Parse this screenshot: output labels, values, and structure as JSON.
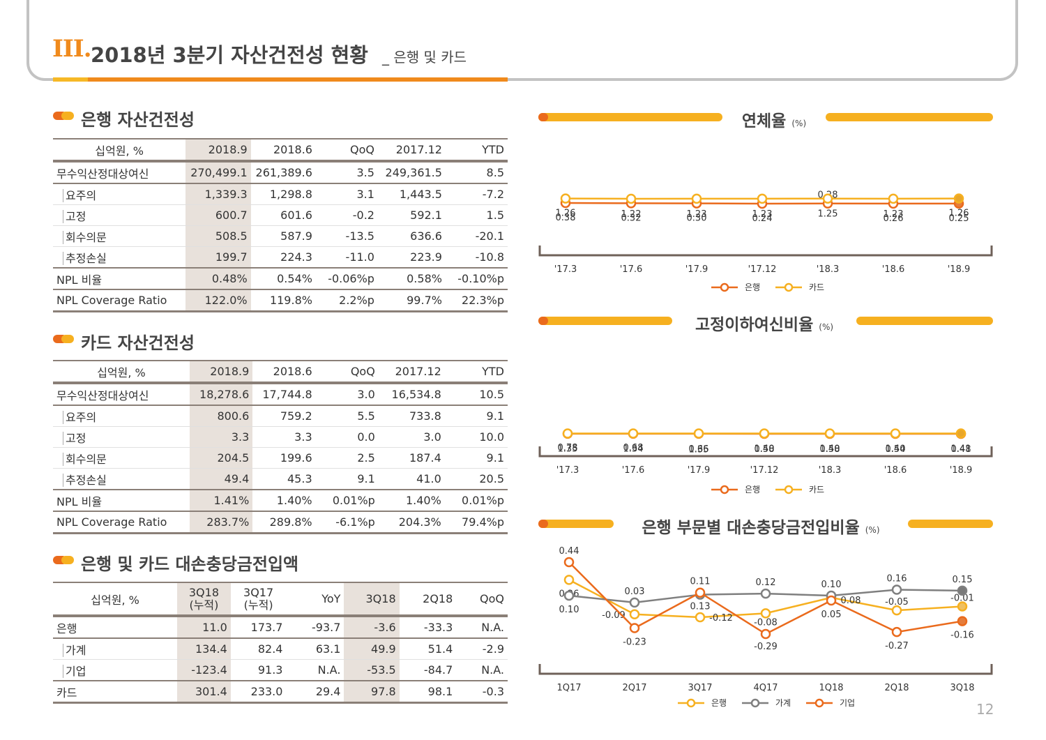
{
  "header": {
    "num": "III.",
    "title": "2018년 3분기 자산건전성 현황",
    "sub": "_ 은행 및 카드"
  },
  "page_no": "12",
  "colors": {
    "orange": "#ea6a1c",
    "yellow": "#f6b020",
    "grey": "#7f7f7f",
    "shade": "#e8e1db"
  },
  "bank_table": {
    "title": "은행 자산건전성",
    "headers": [
      "십억원, %",
      "2018.9",
      "2018.6",
      "QoQ",
      "2017.12",
      "YTD"
    ],
    "rows": [
      [
        "무수익산정대상여신",
        "270,499.1",
        "261,389.6",
        "3.5",
        "249,361.5",
        "8.5"
      ],
      [
        "요주의",
        "1,339.3",
        "1,298.8",
        "3.1",
        "1,443.5",
        "-7.2"
      ],
      [
        "고정",
        "600.7",
        "601.6",
        "-0.2",
        "592.1",
        "1.5"
      ],
      [
        "회수의문",
        "508.5",
        "587.9",
        "-13.5",
        "636.6",
        "-20.1"
      ],
      [
        "추정손실",
        "199.7",
        "224.3",
        "-11.0",
        "223.9",
        "-10.8"
      ],
      [
        "NPL 비율",
        "0.48%",
        "0.54%",
        "-0.06%p",
        "0.58%",
        "-0.10%p"
      ],
      [
        "NPL Coverage Ratio",
        "122.0%",
        "119.8%",
        "2.2%p",
        "99.7%",
        "22.3%p"
      ]
    ]
  },
  "card_table": {
    "title": "카드 자산건전성",
    "headers": [
      "십억원, %",
      "2018.9",
      "2018.6",
      "QoQ",
      "2017.12",
      "YTD"
    ],
    "rows": [
      [
        "무수익산정대상여신",
        "18,278.6",
        "17,744.8",
        "3.0",
        "16,534.8",
        "10.5"
      ],
      [
        "요주의",
        "800.6",
        "759.2",
        "5.5",
        "733.8",
        "9.1"
      ],
      [
        "고정",
        "3.3",
        "3.3",
        "0.0",
        "3.0",
        "10.0"
      ],
      [
        "회수의문",
        "204.5",
        "199.6",
        "2.5",
        "187.4",
        "9.1"
      ],
      [
        "추정손실",
        "49.4",
        "45.3",
        "9.1",
        "41.0",
        "20.5"
      ],
      [
        "NPL 비율",
        "1.41%",
        "1.40%",
        "0.01%p",
        "1.40%",
        "0.01%p"
      ],
      [
        "NPL Coverage Ratio",
        "283.7%",
        "289.8%",
        "-6.1%p",
        "204.3%",
        "79.4%p"
      ]
    ]
  },
  "prov_table": {
    "title": "은행 및 카드 대손충당금전입액",
    "headers": [
      "십억원, %",
      "3Q18",
      "(누적)",
      "3Q17",
      "(누적)",
      "YoY",
      "3Q18",
      "2Q18",
      "QoQ"
    ],
    "rows": [
      [
        "은행",
        "11.0",
        "173.7",
        "-93.7",
        "-3.6",
        "-33.3",
        "N.A."
      ],
      [
        "가계",
        "134.4",
        "82.4",
        "63.1",
        "49.9",
        "51.4",
        "-2.9"
      ],
      [
        "기업",
        "-123.4",
        "91.3",
        "N.A.",
        "-53.5",
        "-84.7",
        "N.A."
      ],
      [
        "카드",
        "301.4",
        "233.0",
        "29.4",
        "97.8",
        "98.1",
        "-0.3"
      ]
    ]
  },
  "chart_data": [
    {
      "type": "line",
      "title": "연체율",
      "unit": "(%)",
      "categories": [
        "'17.3",
        "'17.6",
        "'17.9",
        "'17.12",
        "'18.3",
        "'18.6",
        "'18.9"
      ],
      "series": [
        {
          "name": "은행",
          "values": [
            0.38,
            0.32,
            0.3,
            0.24,
            0.28,
            0.26,
            0.25
          ]
        },
        {
          "name": "카드",
          "values": [
            1.26,
            1.22,
            1.23,
            1.23,
            1.25,
            1.23,
            1.26
          ]
        }
      ],
      "labels": [
        [
          "0.38",
          "0.32",
          "0.30",
          "0.24",
          "0.28",
          "0.26",
          "0.25"
        ],
        [
          "1.26",
          "1.22",
          "1.23",
          "1.23",
          "1.25",
          "1.23",
          "1.26"
        ]
      ]
    },
    {
      "type": "line",
      "title": "고정이하여신비율",
      "unit": "(%)",
      "categories": [
        "'17.3",
        "'17.6",
        "'17.9",
        "'17.12",
        "'18.3",
        "'18.6",
        "'18.9"
      ],
      "series": [
        {
          "name": "은행",
          "values": [
            0.78,
            0.68,
            0.66,
            0.58,
            0.58,
            0.54,
            0.48
          ]
        },
        {
          "name": "카드",
          "values": [
            1.35,
            1.34,
            1.35,
            1.4,
            1.4,
            1.4,
            1.41
          ]
        }
      ],
      "labels": [
        [
          "0.78",
          "0.68",
          "0.66",
          "0.58",
          "0.58",
          "0.54",
          "0.48"
        ],
        [
          "1.35",
          "1.34",
          "1.35",
          "1.40",
          "1.40",
          "1.40",
          "1.41"
        ]
      ]
    },
    {
      "type": "line",
      "title": "은행 부문별 대손충당금전입비율",
      "unit": "(%)",
      "categories": [
        "1Q17",
        "2Q17",
        "3Q17",
        "4Q17",
        "1Q18",
        "2Q18",
        "3Q18"
      ],
      "series": [
        {
          "name": "은행",
          "values": [
            0.26,
            -0.09,
            -0.12,
            -0.08,
            0.08,
            -0.05,
            -0.01
          ]
        },
        {
          "name": "가계",
          "values": [
            0.1,
            0.03,
            0.11,
            0.12,
            0.1,
            0.16,
            0.15
          ]
        },
        {
          "name": "기업",
          "values": [
            0.44,
            -0.23,
            0.13,
            -0.29,
            0.05,
            -0.27,
            -0.16
          ]
        }
      ],
      "labels": [
        [
          "0.26",
          "-0.09",
          "-0.12",
          "-0.08",
          "0.08",
          "-0.05",
          "-0.01"
        ],
        [
          "0.10",
          "0.03",
          "0.11",
          "0.12",
          "0.10",
          "0.16",
          "0.15"
        ],
        [
          "0.44",
          "-0.23",
          "0.13",
          "-0.29",
          "0.05",
          "-0.27",
          "-0.16"
        ]
      ]
    }
  ]
}
